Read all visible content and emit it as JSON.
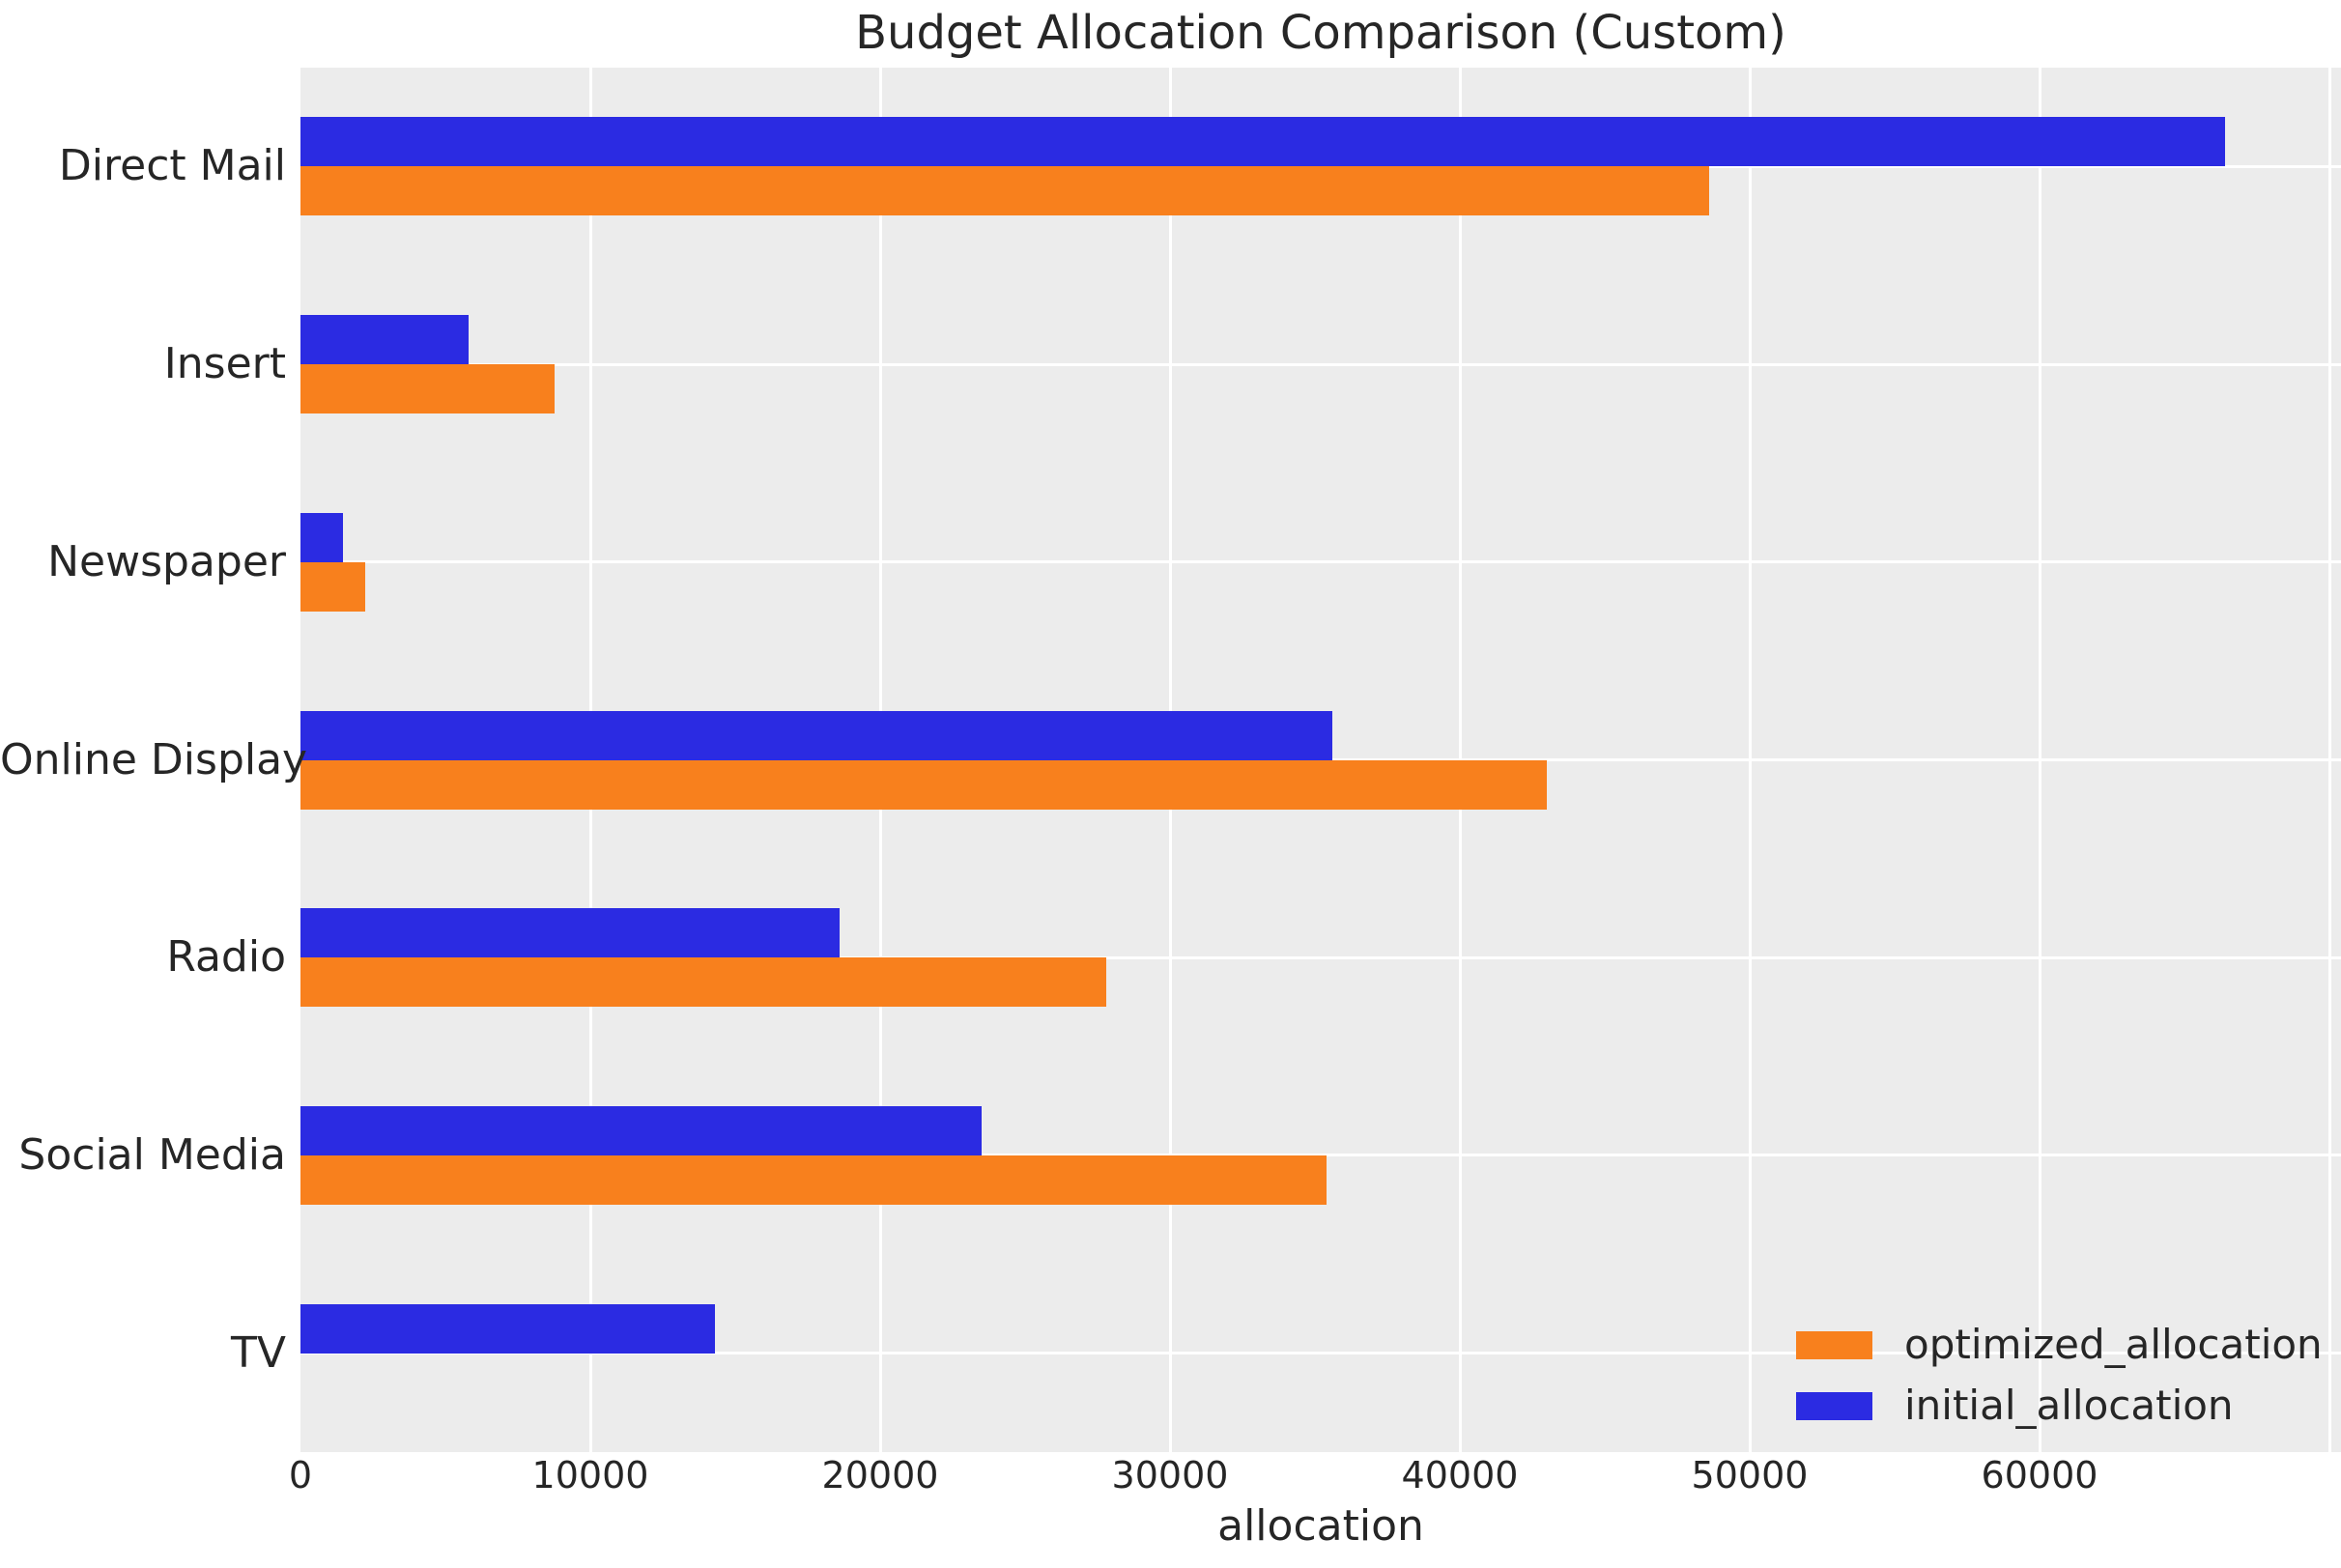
{
  "chart_data": {
    "type": "bar",
    "orientation": "horizontal",
    "title": "Budget Allocation Comparison (Custom)",
    "xlabel": "allocation",
    "ylabel": "",
    "categories": [
      "Direct Mail",
      "Insert",
      "Newspaper",
      "Online Display",
      "Radio",
      "Social Media",
      "TV"
    ],
    "series": [
      {
        "name": "optimized_allocation",
        "color": "#f8801d",
        "values": [
          48600,
          8760,
          2220,
          43000,
          27800,
          35400,
          0
        ]
      },
      {
        "name": "initial_allocation",
        "color": "#2b2be2",
        "values": [
          66400,
          5800,
          1470,
          35600,
          18600,
          23500,
          14300
        ]
      }
    ],
    "bar_order_top_to_bottom": [
      "initial_allocation",
      "optimized_allocation"
    ],
    "xlim": [
      0,
      70400
    ],
    "xticks": [
      0,
      10000,
      20000,
      30000,
      40000,
      50000,
      60000
    ],
    "grid": true,
    "legend_position": "lower right",
    "colors": {
      "figure_background": "#ffffff",
      "plot_background": "#ececec",
      "gridline": "#ffffff",
      "text": "#262626"
    }
  }
}
